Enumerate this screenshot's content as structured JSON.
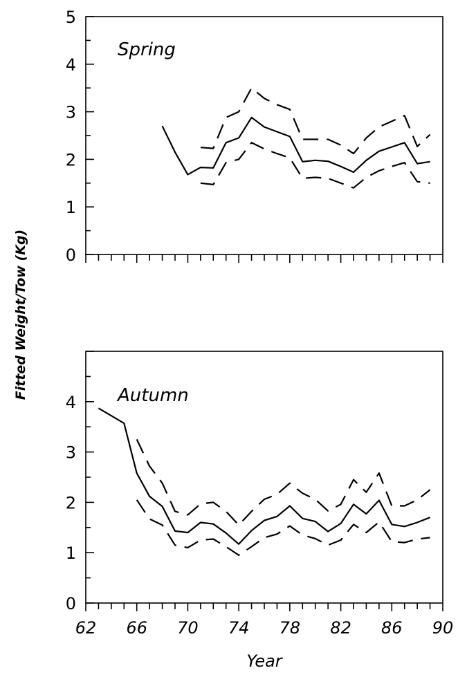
{
  "chart_data": [
    {
      "type": "line",
      "panel_label": "Spring",
      "ylabel": "Fitted Weight/Tow (Kg)",
      "xlim": [
        62,
        90
      ],
      "ylim": [
        0,
        5
      ],
      "yticks": [
        0,
        1,
        2,
        3,
        4,
        5
      ],
      "grid": false,
      "series": [
        {
          "style": "solid",
          "x": [
            68,
            69,
            70,
            71,
            72,
            73,
            74,
            75,
            76,
            77,
            78,
            79,
            80,
            81,
            82,
            83,
            84,
            85,
            86,
            87,
            88,
            89
          ],
          "y": [
            2.7,
            2.15,
            1.68,
            1.83,
            1.82,
            2.35,
            2.45,
            2.88,
            2.68,
            2.58,
            2.48,
            1.95,
            1.98,
            1.96,
            1.85,
            1.73,
            1.98,
            2.17,
            2.26,
            2.35,
            1.91,
            1.95
          ]
        },
        {
          "style": "dashed",
          "x": [
            71,
            72,
            73,
            74,
            75,
            76,
            77,
            78,
            79,
            80,
            81,
            82,
            83,
            84,
            85,
            86,
            87,
            88,
            89
          ],
          "y": [
            2.25,
            2.23,
            2.88,
            3.0,
            3.5,
            3.28,
            3.15,
            3.05,
            2.42,
            2.42,
            2.42,
            2.3,
            2.12,
            2.45,
            2.68,
            2.8,
            2.92,
            2.27,
            2.52
          ]
        },
        {
          "style": "dashed",
          "x": [
            71,
            72,
            73,
            74,
            75,
            76,
            77,
            78,
            79,
            80,
            81,
            82,
            83,
            84,
            85,
            86,
            87,
            88,
            89
          ],
          "y": [
            1.5,
            1.47,
            1.93,
            2.0,
            2.35,
            2.22,
            2.12,
            2.03,
            1.6,
            1.62,
            1.6,
            1.5,
            1.4,
            1.62,
            1.76,
            1.85,
            1.93,
            1.53,
            1.5
          ]
        }
      ]
    },
    {
      "type": "line",
      "panel_label": "Autumn",
      "xlabel": "Year",
      "xlim": [
        62,
        90
      ],
      "ylim": [
        0,
        5
      ],
      "xticks": [
        62,
        66,
        70,
        74,
        78,
        82,
        86,
        90
      ],
      "yticks": [
        0,
        1,
        2,
        3,
        4
      ],
      "grid": false,
      "series": [
        {
          "style": "solid",
          "x": [
            63,
            64,
            65,
            66,
            67,
            68,
            69,
            70,
            71,
            72,
            73,
            74,
            75,
            76,
            77,
            78,
            79,
            80,
            81,
            82,
            83,
            84,
            85,
            86,
            87,
            88,
            89
          ],
          "y": [
            3.87,
            3.72,
            3.57,
            2.58,
            2.12,
            1.92,
            1.43,
            1.4,
            1.6,
            1.57,
            1.39,
            1.17,
            1.44,
            1.64,
            1.72,
            1.93,
            1.68,
            1.62,
            1.42,
            1.58,
            1.96,
            1.77,
            2.04,
            1.56,
            1.52,
            1.6,
            1.7
          ]
        },
        {
          "style": "dashed",
          "x": [
            66,
            67,
            68,
            69,
            70,
            71,
            72,
            73,
            74,
            75,
            76,
            77,
            78,
            79,
            80,
            81,
            82,
            83,
            84,
            85,
            86,
            87,
            88,
            89
          ],
          "y": [
            3.25,
            2.72,
            2.38,
            1.82,
            1.75,
            1.97,
            2.0,
            1.82,
            1.55,
            1.82,
            2.06,
            2.16,
            2.38,
            2.18,
            2.06,
            1.83,
            1.96,
            2.45,
            2.2,
            2.58,
            1.93,
            1.93,
            2.05,
            2.25
          ]
        },
        {
          "style": "dashed",
          "x": [
            66,
            67,
            68,
            69,
            70,
            71,
            72,
            73,
            74,
            75,
            76,
            77,
            78,
            79,
            80,
            81,
            82,
            83,
            84,
            85,
            86,
            87,
            88,
            89
          ],
          "y": [
            2.05,
            1.67,
            1.55,
            1.15,
            1.1,
            1.25,
            1.27,
            1.12,
            0.95,
            1.12,
            1.3,
            1.37,
            1.53,
            1.35,
            1.28,
            1.15,
            1.25,
            1.56,
            1.4,
            1.61,
            1.22,
            1.2,
            1.27,
            1.3
          ]
        }
      ]
    }
  ]
}
